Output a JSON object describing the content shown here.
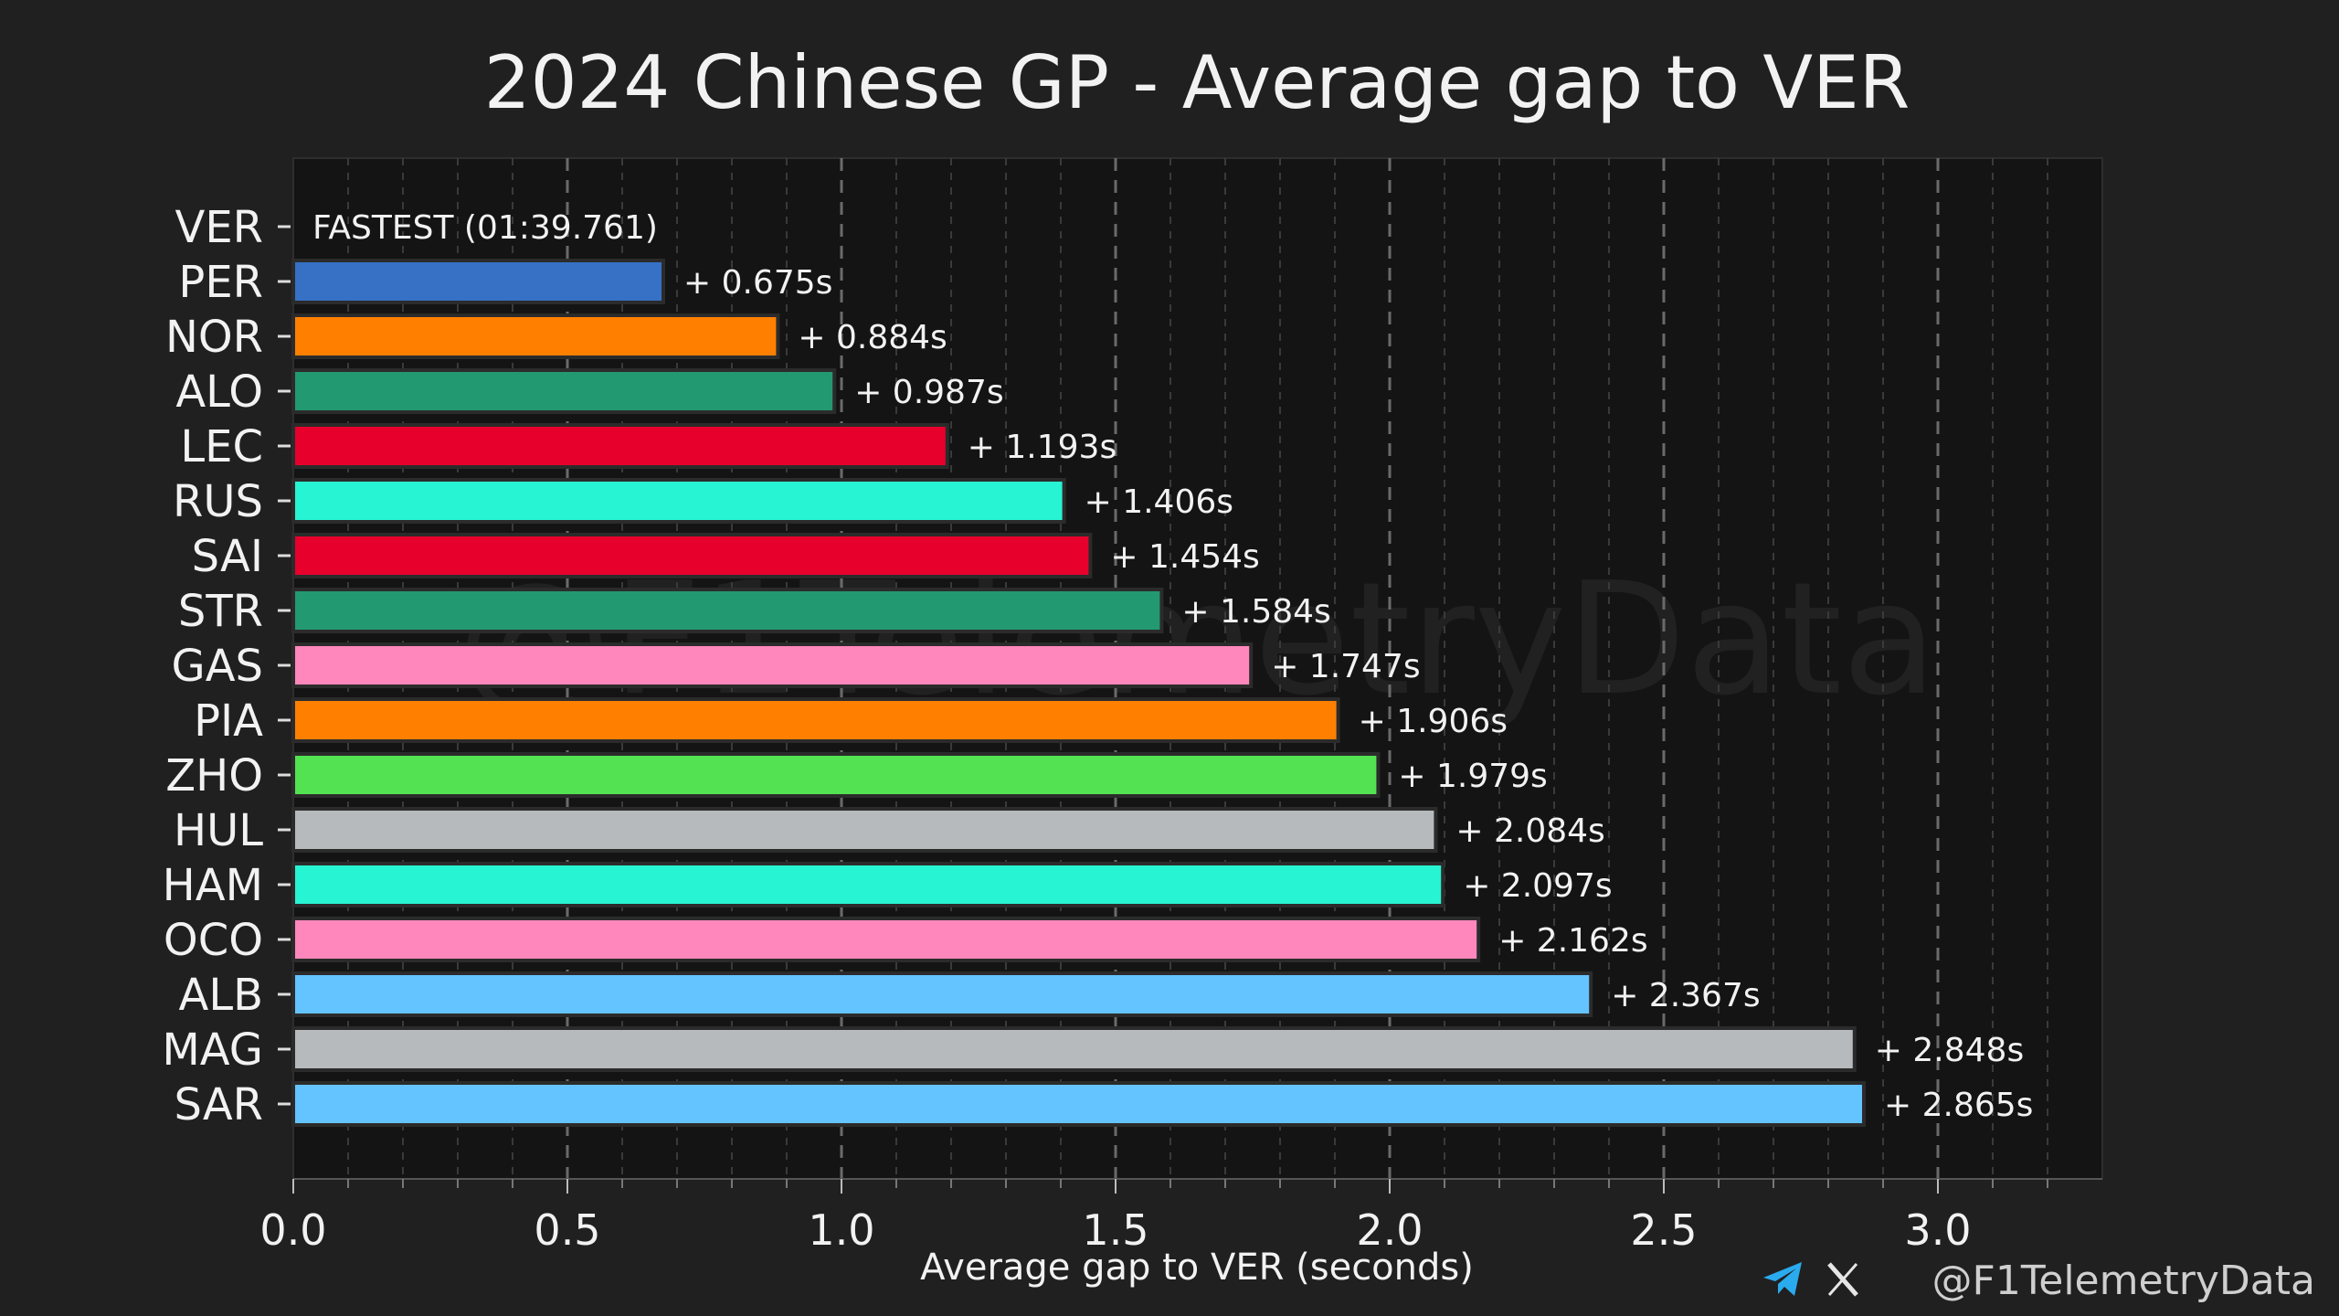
{
  "chart_data": {
    "type": "bar",
    "orientation": "horizontal",
    "title": "2024 Chinese GP - Average gap to VER",
    "xlabel": "Average gap to VER (seconds)",
    "ylabel": "",
    "xlim": [
      0,
      3.3
    ],
    "xticks": [
      "0.0",
      "0.5",
      "1.0",
      "1.5",
      "2.0",
      "2.5",
      "3.0"
    ],
    "grid": "vertical dashed",
    "reference_label": "FASTEST (01:39.761)",
    "categories": [
      "VER",
      "PER",
      "NOR",
      "ALO",
      "LEC",
      "RUS",
      "SAI",
      "STR",
      "GAS",
      "PIA",
      "ZHO",
      "HUL",
      "HAM",
      "OCO",
      "ALB",
      "MAG",
      "SAR"
    ],
    "values": [
      0,
      0.675,
      0.884,
      0.987,
      1.193,
      1.406,
      1.454,
      1.584,
      1.747,
      1.906,
      1.979,
      2.084,
      2.097,
      2.162,
      2.367,
      2.848,
      2.865
    ],
    "value_labels": [
      "FASTEST (01:39.761)",
      "+ 0.675s",
      "+ 0.884s",
      "+ 0.987s",
      "+ 1.193s",
      "+ 1.406s",
      "+ 1.454s",
      "+ 1.584s",
      "+ 1.747s",
      "+ 1.906s",
      "+ 1.979s",
      "+ 2.084s",
      "+ 2.097s",
      "+ 2.162s",
      "+ 2.367s",
      "+ 2.848s",
      "+ 2.865s"
    ],
    "colors": [
      "#3671C6",
      "#3671C6",
      "#FF8000",
      "#229971",
      "#E8002D",
      "#27F4D2",
      "#E8002D",
      "#229971",
      "#FF87BC",
      "#FF8000",
      "#52E252",
      "#B6BABD",
      "#27F4D2",
      "#FF87BC",
      "#64C4FF",
      "#B6BABD",
      "#64C4FF"
    ]
  },
  "watermark": "@F1TelemetryData",
  "footer": {
    "handle": "@F1TelemetryData",
    "icons": [
      "telegram-icon",
      "x-icon"
    ],
    "telegram_color": "#2AABEE"
  }
}
